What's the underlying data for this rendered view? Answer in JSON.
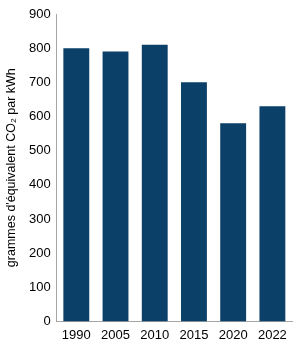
{
  "chart_data": {
    "type": "bar",
    "y_label": "grammes d'équivalent CO₂ par kWh",
    "categories": [
      "1990",
      "2005",
      "2010",
      "2015",
      "2020",
      "2022"
    ],
    "values": [
      800,
      790,
      810,
      700,
      580,
      630
    ],
    "color": "#0b4068",
    "ylim": [
      0,
      900
    ],
    "yticks": [
      0,
      100,
      200,
      300,
      400,
      500,
      600,
      700,
      800,
      900
    ],
    "grid": false
  }
}
